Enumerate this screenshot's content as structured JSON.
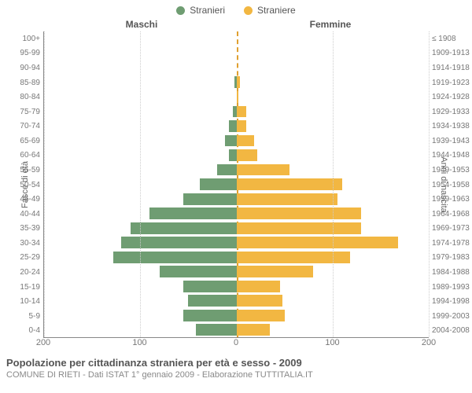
{
  "legend": {
    "male": {
      "label": "Stranieri",
      "color": "#6f9d72"
    },
    "female": {
      "label": "Straniere",
      "color": "#f2b742"
    }
  },
  "headers": {
    "left": "Maschi",
    "right": "Femmine"
  },
  "axis_labels": {
    "left": "Fasce di età",
    "right": "Anni di nascita"
  },
  "title": "Popolazione per cittadinanza straniera per età e sesso - 2009",
  "subtitle": "COMUNE DI RIETI - Dati ISTAT 1° gennaio 2009 - Elaborazione TUTTITALIA.IT",
  "chart": {
    "type": "population-pyramid",
    "xlim": 200,
    "xticks": [
      200,
      100,
      0,
      100,
      200
    ],
    "background_color": "#ffffff",
    "grid_color": "#cccccc",
    "axis_color": "#888888",
    "center_line_color": "#e0a030",
    "male_color": "#6f9d72",
    "female_color": "#f2b742",
    "rows": [
      {
        "age": "100+",
        "birth": "≤ 1908",
        "male": 0,
        "female": 0
      },
      {
        "age": "95-99",
        "birth": "1909-1913",
        "male": 0,
        "female": 0
      },
      {
        "age": "90-94",
        "birth": "1914-1918",
        "male": 0,
        "female": 0
      },
      {
        "age": "85-89",
        "birth": "1919-1923",
        "male": 2,
        "female": 4
      },
      {
        "age": "80-84",
        "birth": "1924-1928",
        "male": 0,
        "female": 2
      },
      {
        "age": "75-79",
        "birth": "1929-1933",
        "male": 4,
        "female": 10
      },
      {
        "age": "70-74",
        "birth": "1934-1938",
        "male": 8,
        "female": 10
      },
      {
        "age": "65-69",
        "birth": "1939-1943",
        "male": 12,
        "female": 18
      },
      {
        "age": "60-64",
        "birth": "1944-1948",
        "male": 8,
        "female": 22
      },
      {
        "age": "55-59",
        "birth": "1949-1953",
        "male": 20,
        "female": 55
      },
      {
        "age": "50-54",
        "birth": "1954-1958",
        "male": 38,
        "female": 110
      },
      {
        "age": "45-49",
        "birth": "1959-1963",
        "male": 55,
        "female": 105
      },
      {
        "age": "40-44",
        "birth": "1964-1968",
        "male": 90,
        "female": 130
      },
      {
        "age": "35-39",
        "birth": "1969-1973",
        "male": 110,
        "female": 130
      },
      {
        "age": "30-34",
        "birth": "1974-1978",
        "male": 120,
        "female": 168
      },
      {
        "age": "25-29",
        "birth": "1979-1983",
        "male": 128,
        "female": 118
      },
      {
        "age": "20-24",
        "birth": "1984-1988",
        "male": 80,
        "female": 80
      },
      {
        "age": "15-19",
        "birth": "1989-1993",
        "male": 55,
        "female": 45
      },
      {
        "age": "10-14",
        "birth": "1994-1998",
        "male": 50,
        "female": 48
      },
      {
        "age": "5-9",
        "birth": "1999-2003",
        "male": 55,
        "female": 50
      },
      {
        "age": "0-4",
        "birth": "2004-2008",
        "male": 42,
        "female": 35
      }
    ]
  }
}
